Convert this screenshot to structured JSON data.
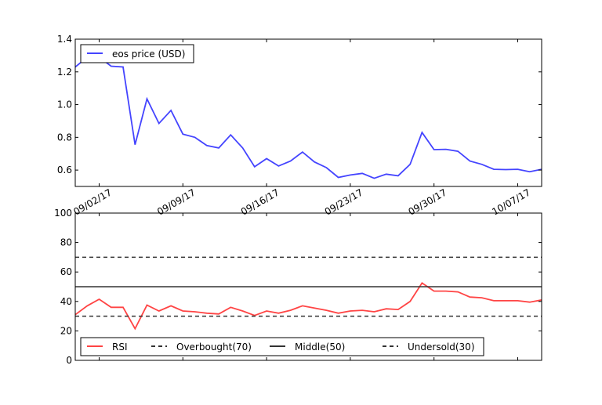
{
  "chart_data": [
    {
      "type": "line",
      "x": [
        "08/31/17",
        "09/01/17",
        "09/02/17",
        "09/03/17",
        "09/04/17",
        "09/05/17",
        "09/06/17",
        "09/07/17",
        "09/08/17",
        "09/09/17",
        "09/10/17",
        "09/11/17",
        "09/12/17",
        "09/13/17",
        "09/14/17",
        "09/15/17",
        "09/16/17",
        "09/17/17",
        "09/18/17",
        "09/19/17",
        "09/20/17",
        "09/21/17",
        "09/22/17",
        "09/23/17",
        "09/24/17",
        "09/25/17",
        "09/26/17",
        "09/27/17",
        "09/28/17",
        "09/29/17",
        "09/30/17",
        "10/01/17",
        "10/02/17",
        "10/03/17",
        "10/04/17",
        "10/05/17",
        "10/06/17",
        "10/07/17",
        "10/08/17",
        "10/09/17"
      ],
      "series": [
        {
          "name": "eos price (USD)",
          "color": "#4444ff",
          "values": [
            1.23,
            1.29,
            1.29,
            1.235,
            1.23,
            0.755,
            1.035,
            0.885,
            0.965,
            0.82,
            0.8,
            0.75,
            0.735,
            0.815,
            0.735,
            0.62,
            0.67,
            0.625,
            0.655,
            0.71,
            0.65,
            0.615,
            0.555,
            0.57,
            0.58,
            0.55,
            0.575,
            0.565,
            0.635,
            0.83,
            0.725,
            0.727,
            0.715,
            0.655,
            0.635,
            0.605,
            0.603,
            0.605,
            0.59,
            0.605
          ]
        }
      ],
      "xticks": [
        "09/02/17",
        "09/09/17",
        "09/16/17",
        "09/23/17",
        "09/30/17",
        "10/07/17"
      ],
      "yticks": [
        "0.6",
        "0.8",
        "1.0",
        "1.2",
        "1.4"
      ],
      "ylim": [
        0.5,
        1.4
      ],
      "legend": "top-left",
      "grid": false
    },
    {
      "type": "line",
      "series": [
        {
          "name": "RSI",
          "color": "#ff4444",
          "style": "solid",
          "values": [
            31,
            37,
            41.5,
            36,
            36,
            21.5,
            37.5,
            33.5,
            37,
            33.5,
            33,
            32,
            31.5,
            36,
            33.5,
            30.5,
            33.5,
            32,
            34,
            37,
            35.5,
            34,
            32,
            33.5,
            34,
            33,
            35,
            34.5,
            40,
            52.5,
            47,
            47,
            46.5,
            43,
            42.5,
            40.5,
            40.5,
            40.5,
            39.5,
            41
          ]
        },
        {
          "name": "Overbought(70)",
          "color": "#333333",
          "style": "dashed",
          "constant": 70
        },
        {
          "name": "Middle(50)",
          "color": "#333333",
          "style": "solid",
          "constant": 50
        },
        {
          "name": "Undersold(30)",
          "color": "#333333",
          "style": "dashed",
          "constant": 30
        }
      ],
      "yticks": [
        "0",
        "20",
        "40",
        "60",
        "80",
        "100"
      ],
      "ylim": [
        0,
        100
      ],
      "legend": "bottom",
      "grid": false
    }
  ]
}
